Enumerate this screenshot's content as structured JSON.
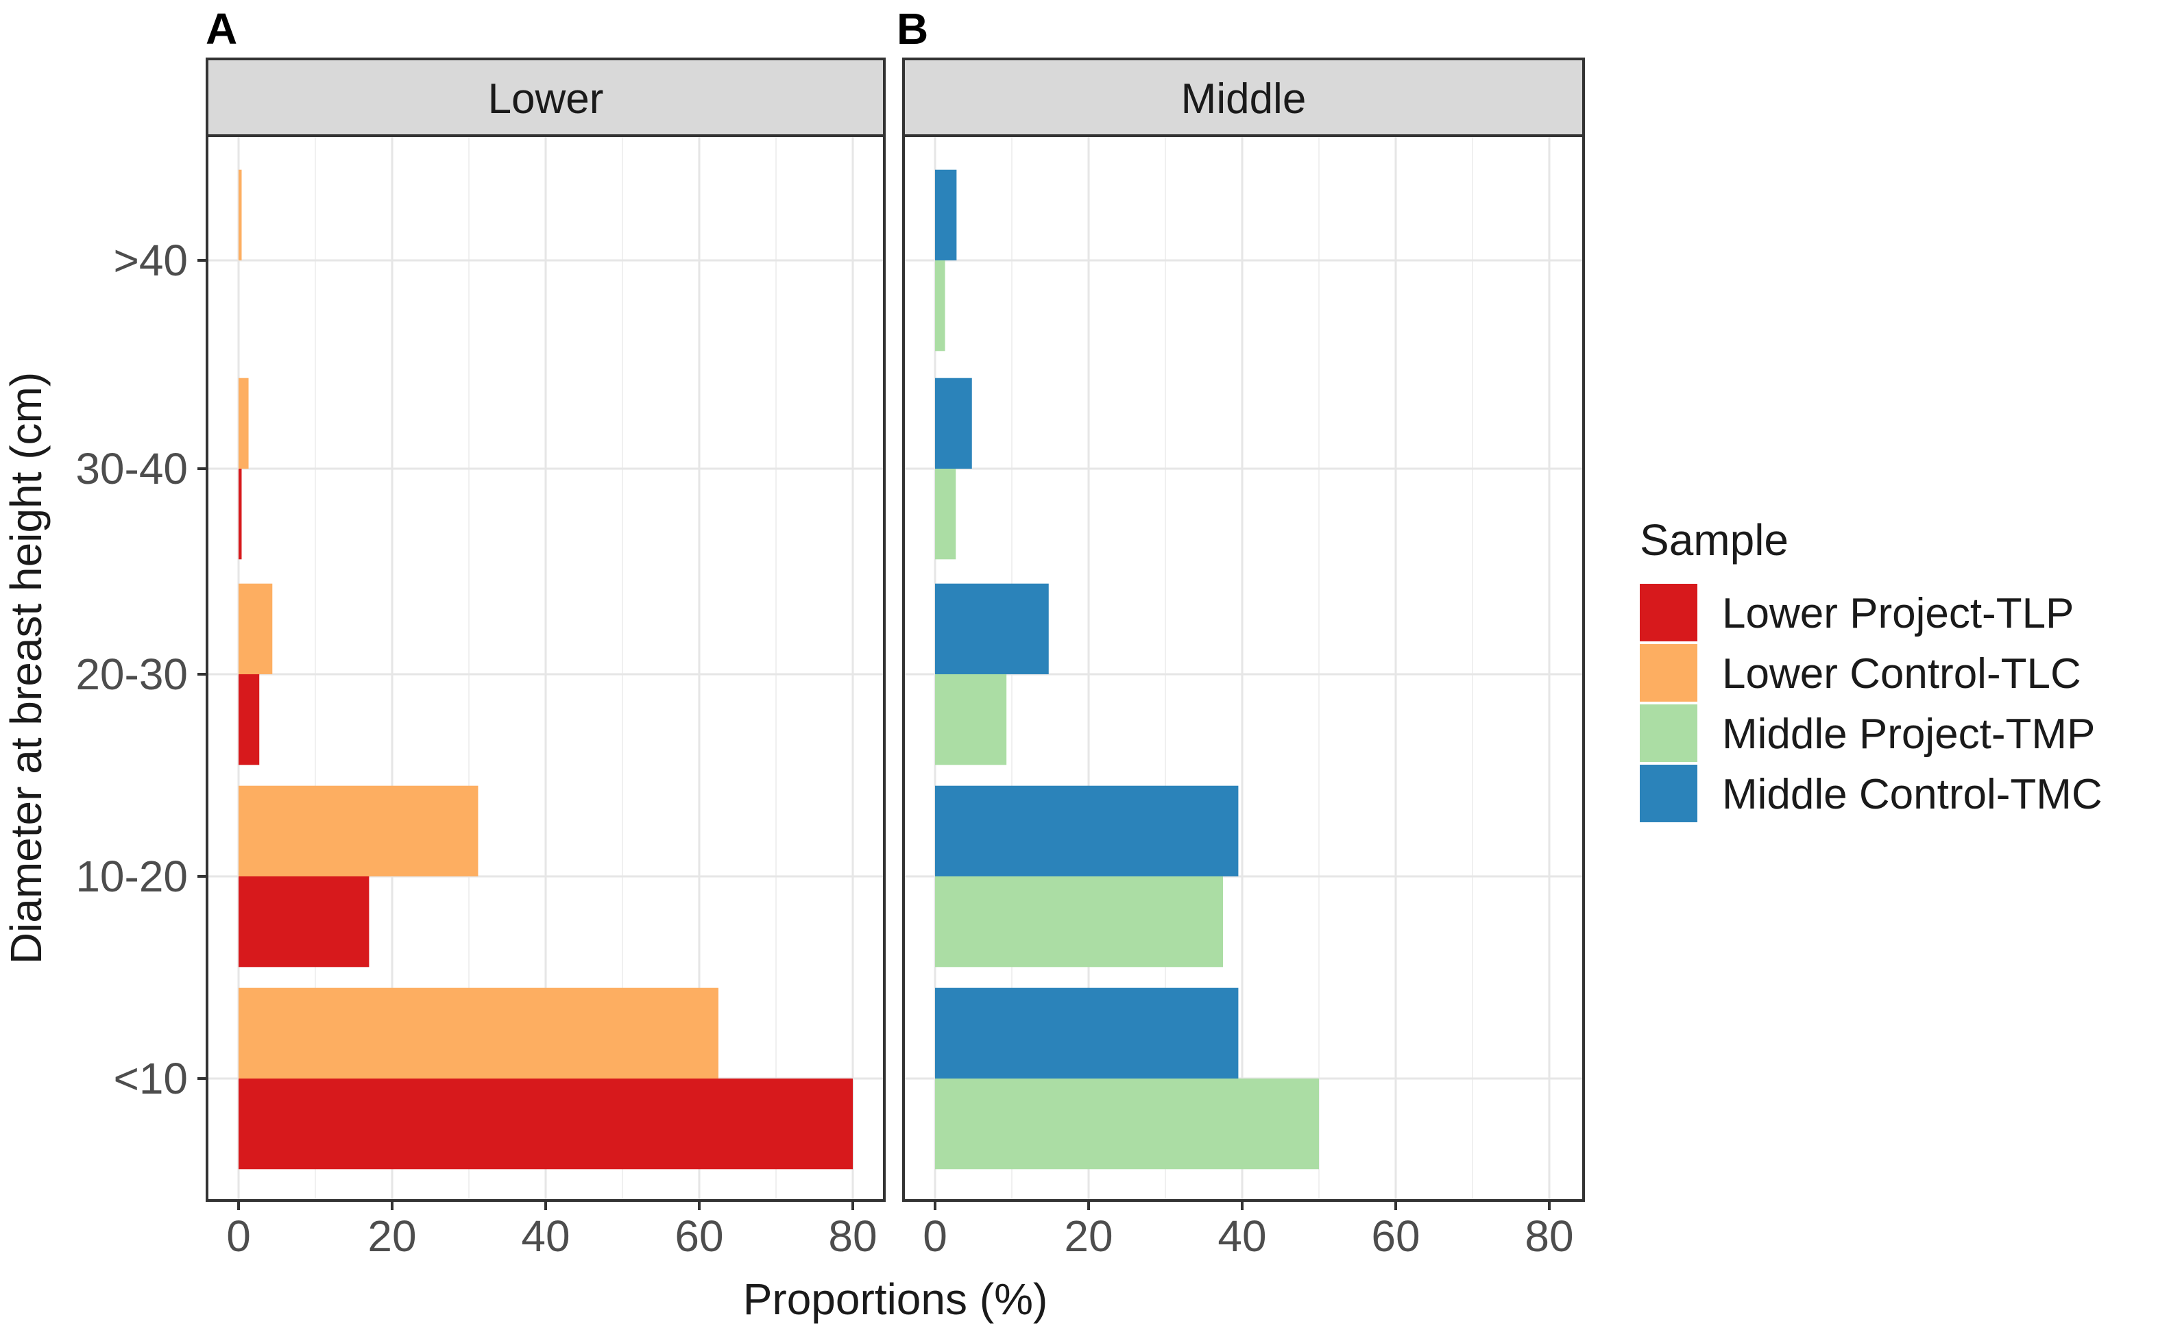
{
  "chart_data": {
    "type": "bar",
    "orientation": "horizontal",
    "xlabel": "Proportions (%)",
    "ylabel": "Diameter at breast height (cm)",
    "xlim": [
      0,
      85
    ],
    "x_ticks": [
      "0",
      "20",
      "40",
      "60",
      "80"
    ],
    "categories": [
      "<10",
      "10-20",
      "20-30",
      "30-40",
      ">40"
    ],
    "legend": {
      "title": "Sample",
      "placement": "right",
      "entries": [
        {
          "label": "Lower Project-TLP",
          "color": "#d7191c"
        },
        {
          "label": "Lower Control-TLC",
          "color": "#fdae61"
        },
        {
          "label": "Middle Project-TMP",
          "color": "#abdda4"
        },
        {
          "label": "Middle Control-TMC",
          "color": "#2b83ba"
        }
      ]
    },
    "panels": [
      {
        "letter": "A",
        "title": "Lower",
        "series": [
          {
            "name": "Lower Project-TLP",
            "color": "#d7191c",
            "values": [
              80.0,
              17.0,
              2.7,
              0.4,
              0
            ]
          },
          {
            "name": "Lower Control-TLC",
            "color": "#fdae61",
            "values": [
              62.5,
              31.2,
              4.4,
              1.3,
              0.4
            ]
          }
        ]
      },
      {
        "letter": "B",
        "title": "Middle",
        "series": [
          {
            "name": "Middle Project-TMP",
            "color": "#abdda4",
            "values": [
              50.0,
              37.5,
              9.3,
              2.7,
              1.3
            ]
          },
          {
            "name": "Middle Control-TMC",
            "color": "#2b83ba",
            "values": [
              39.5,
              39.5,
              14.8,
              4.8,
              2.8
            ]
          }
        ]
      }
    ]
  }
}
